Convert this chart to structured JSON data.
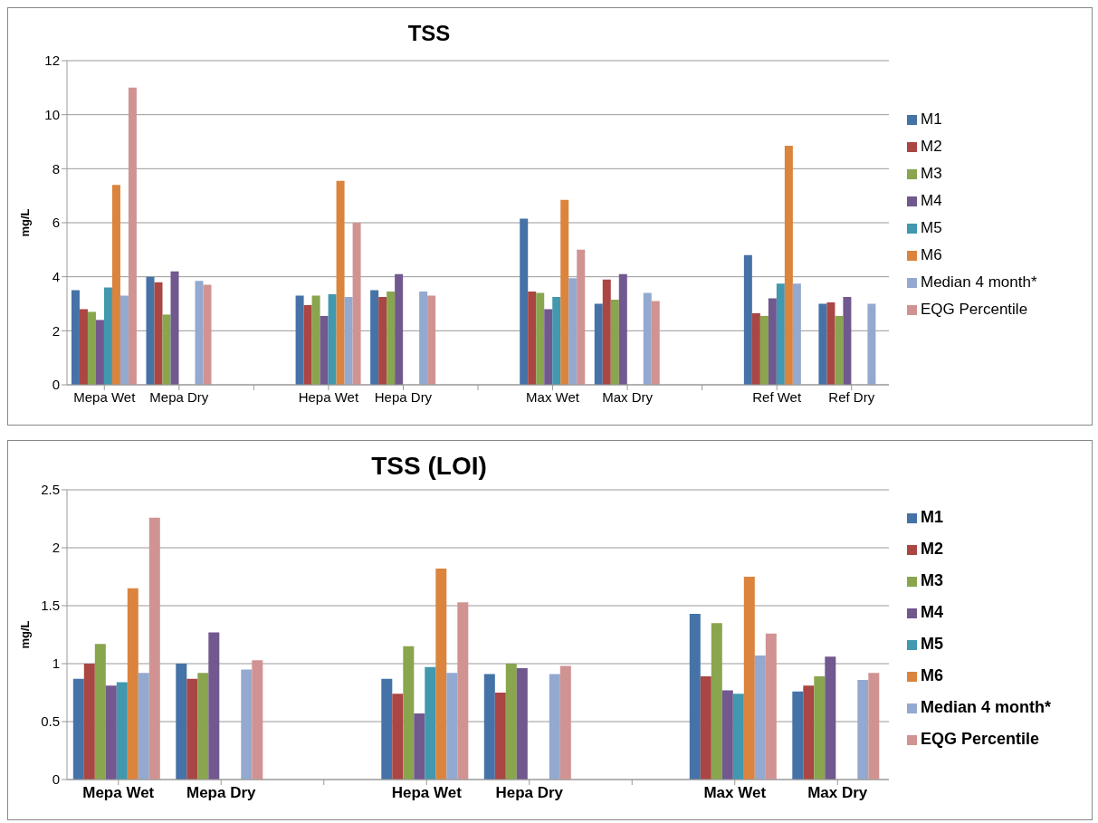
{
  "chart_data": [
    {
      "type": "bar",
      "title": "TSS",
      "ylabel": "mg/L",
      "categories": [
        "Mepa Wet",
        "Mepa Dry",
        null,
        "Hepa Wet",
        "Hepa Dry",
        null,
        "Max Wet",
        "Max Dry",
        null,
        "Ref Wet",
        "Ref Dry"
      ],
      "ylim": [
        0,
        12
      ],
      "yticks": [
        0,
        2,
        4,
        6,
        8,
        10,
        12
      ],
      "grid": "y",
      "legend": "right",
      "series": [
        {
          "name": "M1",
          "color": "#4572a7",
          "values": [
            3.5,
            4.0,
            null,
            3.3,
            3.5,
            null,
            6.15,
            3.0,
            null,
            4.8,
            3.0
          ]
        },
        {
          "name": "M2",
          "color": "#aa4643",
          "values": [
            2.8,
            3.8,
            null,
            2.95,
            3.25,
            null,
            3.45,
            3.9,
            null,
            2.65,
            3.05
          ]
        },
        {
          "name": "M3",
          "color": "#89a54e",
          "values": [
            2.7,
            2.6,
            null,
            3.3,
            3.45,
            null,
            3.4,
            3.15,
            null,
            2.55,
            2.55
          ]
        },
        {
          "name": "M4",
          "color": "#71588f",
          "values": [
            2.4,
            4.2,
            null,
            2.55,
            4.1,
            null,
            2.8,
            4.1,
            null,
            3.2,
            3.25
          ]
        },
        {
          "name": "M5",
          "color": "#4198af",
          "values": [
            3.6,
            null,
            null,
            3.35,
            null,
            null,
            3.25,
            null,
            null,
            3.75,
            null
          ]
        },
        {
          "name": "M6",
          "color": "#db843d",
          "values": [
            7.4,
            null,
            null,
            7.55,
            null,
            null,
            6.85,
            null,
            null,
            8.85,
            null
          ]
        },
        {
          "name": "Median 4 month*",
          "color": "#93a9cf",
          "values": [
            3.3,
            3.85,
            null,
            3.25,
            3.45,
            null,
            3.95,
            3.4,
            null,
            3.75,
            3.0
          ]
        },
        {
          "name": "EQG Percentile",
          "color": "#d19392",
          "values": [
            11.0,
            3.7,
            null,
            6.0,
            3.3,
            null,
            5.0,
            3.1,
            null,
            null,
            null
          ]
        }
      ]
    },
    {
      "type": "bar",
      "title": "TSS (LOI)",
      "ylabel": "mg/L",
      "categories": [
        "Mepa Wet",
        "Mepa Dry",
        null,
        "Hepa Wet",
        "Hepa Dry",
        null,
        "Max Wet",
        "Max Dry"
      ],
      "ylim": [
        0,
        2.5
      ],
      "yticks": [
        0,
        0.5,
        1,
        1.5,
        2,
        2.5
      ],
      "grid": "y",
      "legend": "right",
      "series": [
        {
          "name": "M1",
          "color": "#4572a7",
          "values": [
            0.87,
            1.0,
            null,
            0.87,
            0.91,
            null,
            1.43,
            0.76
          ]
        },
        {
          "name": "M2",
          "color": "#aa4643",
          "values": [
            1.0,
            0.87,
            null,
            0.74,
            0.75,
            null,
            0.89,
            0.81
          ]
        },
        {
          "name": "M3",
          "color": "#89a54e",
          "values": [
            1.17,
            0.92,
            null,
            1.15,
            1.0,
            null,
            1.35,
            0.89
          ]
        },
        {
          "name": "M4",
          "color": "#71588f",
          "values": [
            0.81,
            1.27,
            null,
            0.57,
            0.96,
            null,
            0.77,
            1.06
          ]
        },
        {
          "name": "M5",
          "color": "#4198af",
          "values": [
            0.84,
            null,
            null,
            0.97,
            null,
            null,
            0.74,
            null
          ]
        },
        {
          "name": "M6",
          "color": "#db843d",
          "values": [
            1.65,
            null,
            null,
            1.82,
            null,
            null,
            1.75,
            null
          ]
        },
        {
          "name": "Median 4 month*",
          "color": "#93a9cf",
          "values": [
            0.92,
            0.95,
            null,
            0.92,
            0.91,
            null,
            1.07,
            0.86
          ]
        },
        {
          "name": "EQG Percentile",
          "color": "#d19392",
          "values": [
            2.26,
            1.03,
            null,
            1.53,
            0.98,
            null,
            1.26,
            0.92
          ]
        }
      ]
    }
  ]
}
